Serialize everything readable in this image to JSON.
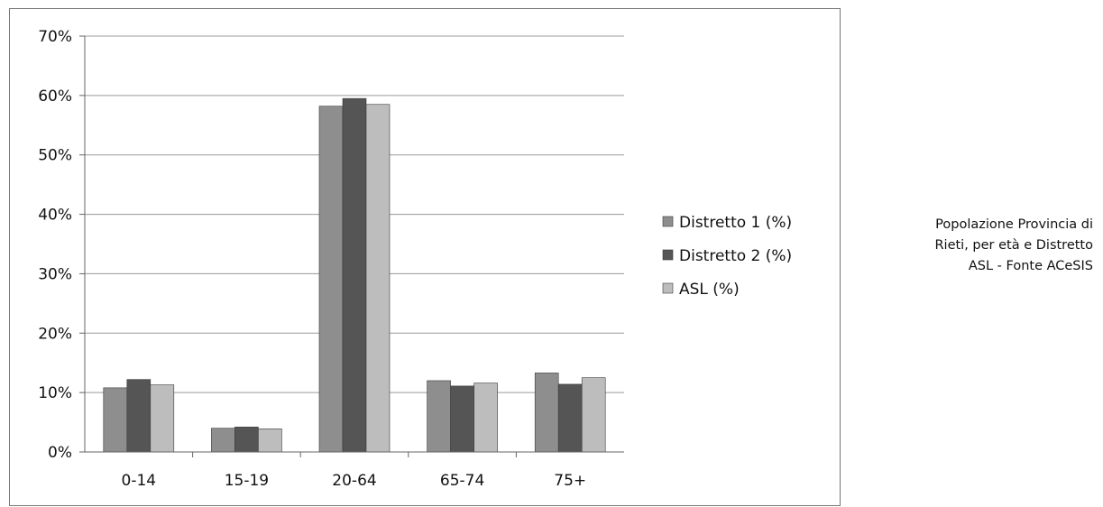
{
  "chart_data": {
    "type": "bar",
    "categories": [
      "0-14",
      "15-19",
      "20-64",
      "65-74",
      "75+"
    ],
    "series": [
      {
        "name": "Distretto 1 (%)",
        "values": [
          10.8,
          4.0,
          58.2,
          12.0,
          13.3
        ],
        "color": "#8e8e8e"
      },
      {
        "name": "Distretto 2 (%)",
        "values": [
          12.2,
          4.2,
          59.5,
          11.1,
          11.4
        ],
        "color": "#555555"
      },
      {
        "name": "ASL (%)",
        "values": [
          11.3,
          3.9,
          58.5,
          11.6,
          12.5
        ],
        "color": "#bdbdbd"
      }
    ],
    "ylim": [
      0,
      70
    ],
    "yticks": [
      "0%",
      "10%",
      "20%",
      "30%",
      "40%",
      "50%",
      "60%",
      "70%"
    ],
    "grid": true,
    "legend_position": "right"
  },
  "caption_lines": [
    "Popolazione Provincia di",
    "Rieti, per età e Distretto",
    "ASL - Fonte ACeSIS"
  ]
}
